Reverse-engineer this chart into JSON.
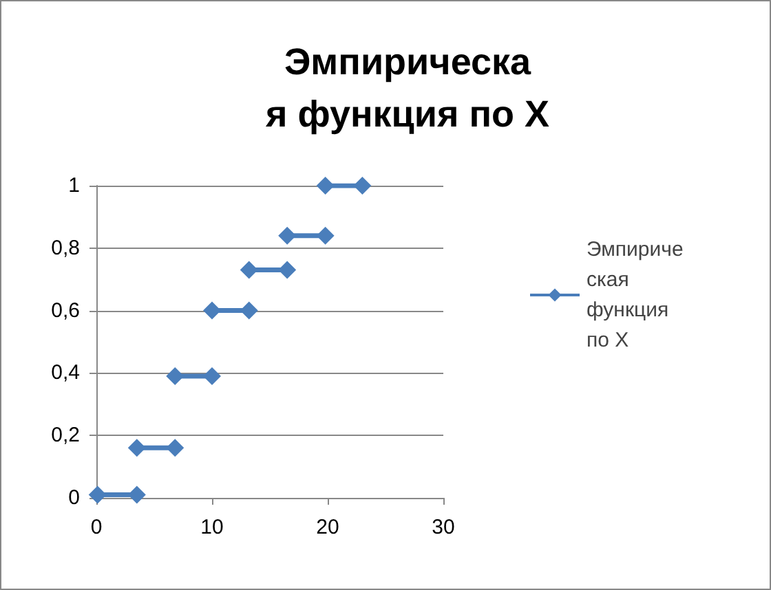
{
  "chart_data": {
    "type": "line",
    "title": "Эмпирическая функция по X",
    "x": [
      0.1,
      3.5,
      null,
      3.5,
      6.8,
      null,
      6.8,
      10,
      null,
      10,
      13.2,
      null,
      13.2,
      16.5,
      null,
      16.5,
      19.8,
      null,
      19.8,
      23
    ],
    "series": [
      {
        "name": "Эмпирическая функция по X",
        "color": "#4a7ebb",
        "values": [
          0.01,
          0.01,
          null,
          0.16,
          0.16,
          null,
          0.39,
          0.39,
          null,
          0.6,
          0.6,
          null,
          0.73,
          0.73,
          null,
          0.84,
          0.84,
          null,
          1,
          1
        ]
      }
    ],
    "xlim": [
      0,
      30
    ],
    "xticks": [
      0,
      10,
      20,
      30
    ],
    "ylim": [
      0,
      1
    ],
    "yticks": [
      {
        "value": 0,
        "label": "0"
      },
      {
        "value": 0.2,
        "label": "0,2"
      },
      {
        "value": 0.4,
        "label": "0,4"
      },
      {
        "value": 0.6,
        "label": "0,6"
      },
      {
        "value": 0.8,
        "label": "0,8"
      },
      {
        "value": 1,
        "label": "1"
      }
    ],
    "grid": "y",
    "legend": "right",
    "marker": "diamond",
    "line_style": "solid"
  }
}
